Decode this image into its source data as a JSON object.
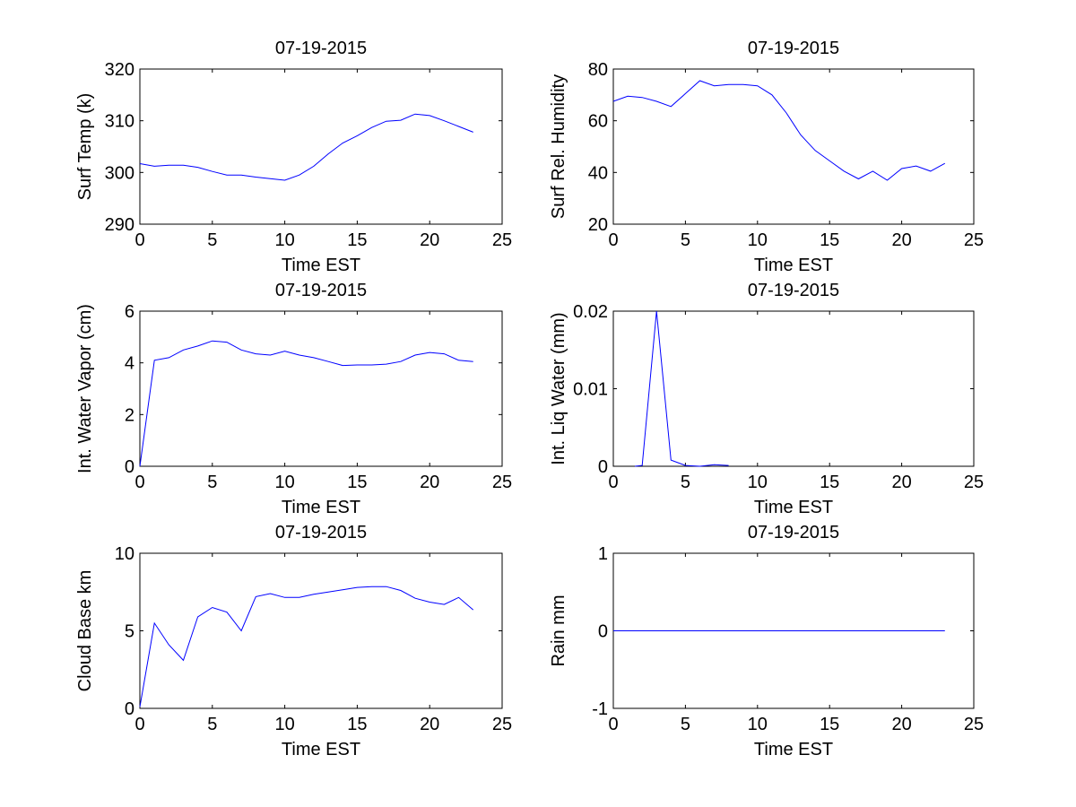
{
  "figure": {
    "background": "#ffffff",
    "line_color": "#0000ff"
  },
  "chart_data": [
    {
      "type": "line",
      "title": "07-19-2015",
      "xlabel": "Time EST",
      "ylabel": "Surf Temp (k)",
      "xlim": [
        0,
        25
      ],
      "ylim": [
        290,
        320
      ],
      "xticks": [
        0,
        5,
        10,
        15,
        20,
        25
      ],
      "yticks": [
        290,
        300,
        310,
        320
      ],
      "x": [
        0,
        1,
        2,
        3,
        4,
        5,
        6,
        7,
        8,
        9,
        10,
        11,
        12,
        13,
        14,
        15,
        16,
        17,
        18,
        19,
        20,
        21,
        22,
        23
      ],
      "series": [
        {
          "values": [
            301.7,
            301.2,
            301.4,
            301.4,
            301.0,
            300.2,
            299.5,
            299.5,
            299.1,
            298.8,
            298.5,
            299.5,
            301.2,
            303.6,
            305.7,
            307.1,
            308.7,
            309.9,
            310.1,
            311.3,
            311.0,
            310.0,
            308.9,
            307.8
          ]
        }
      ],
      "grid": false
    },
    {
      "type": "line",
      "title": "07-19-2015",
      "xlabel": "Time EST",
      "ylabel": "Surf Rel. Humidity",
      "xlim": [
        0,
        25
      ],
      "ylim": [
        20,
        80
      ],
      "xticks": [
        0,
        5,
        10,
        15,
        20,
        25
      ],
      "yticks": [
        20,
        40,
        60,
        80
      ],
      "x": [
        0,
        1,
        2,
        3,
        4,
        5,
        6,
        7,
        8,
        9,
        10,
        11,
        12,
        13,
        14,
        15,
        16,
        17,
        18,
        19,
        20,
        21,
        22,
        23
      ],
      "series": [
        {
          "values": [
            67.5,
            69.5,
            69.0,
            67.5,
            65.5,
            70.5,
            75.5,
            73.5,
            74.0,
            74.0,
            73.5,
            70.0,
            63.0,
            54.5,
            48.5,
            44.5,
            40.5,
            37.5,
            40.5,
            37.0,
            41.5,
            42.5,
            40.5,
            43.5
          ]
        }
      ],
      "grid": false
    },
    {
      "type": "line",
      "title": "07-19-2015",
      "xlabel": "Time EST",
      "ylabel": "Int. Water Vapor (cm)",
      "xlim": [
        0,
        25
      ],
      "ylim": [
        0,
        6
      ],
      "xticks": [
        0,
        5,
        10,
        15,
        20,
        25
      ],
      "yticks": [
        0,
        2,
        4,
        6
      ],
      "x": [
        0,
        1,
        2,
        3,
        4,
        5,
        6,
        7,
        8,
        9,
        10,
        11,
        12,
        13,
        14,
        15,
        16,
        17,
        18,
        19,
        20,
        21,
        22,
        23
      ],
      "series": [
        {
          "values": [
            0.0,
            4.1,
            4.2,
            4.5,
            4.65,
            4.85,
            4.8,
            4.5,
            4.35,
            4.3,
            4.45,
            4.3,
            4.2,
            4.05,
            3.9,
            3.92,
            3.92,
            3.95,
            4.05,
            4.3,
            4.4,
            4.35,
            4.1,
            4.05
          ]
        }
      ],
      "grid": false
    },
    {
      "type": "line",
      "title": "07-19-2015",
      "xlabel": "Time EST",
      "ylabel": "Int. Liq Water (mm)",
      "xlim": [
        0,
        25
      ],
      "ylim": [
        0,
        0.02
      ],
      "xticks": [
        0,
        5,
        10,
        15,
        20,
        25
      ],
      "yticks": [
        0,
        0.01,
        0.02
      ],
      "ytick_labels": [
        "0",
        "0.01",
        "0.02"
      ],
      "x": [
        1.5,
        2,
        3,
        4,
        5,
        6,
        7,
        8
      ],
      "series": [
        {
          "values": [
            0,
            0.0001,
            0.02,
            0.0008,
            0.0001,
            0,
            0.0002,
            0.0001
          ]
        }
      ],
      "grid": false
    },
    {
      "type": "line",
      "title": "07-19-2015",
      "xlabel": "Time EST",
      "ylabel": "Cloud Base km",
      "xlim": [
        0,
        25
      ],
      "ylim": [
        0,
        10
      ],
      "xticks": [
        0,
        5,
        10,
        15,
        20,
        25
      ],
      "yticks": [
        0,
        5,
        10
      ],
      "x": [
        0,
        1,
        2,
        3,
        4,
        5,
        6,
        7,
        8,
        9,
        10,
        11,
        12,
        13,
        14,
        15,
        16,
        17,
        18,
        19,
        20,
        21,
        22,
        23
      ],
      "series": [
        {
          "values": [
            0.1,
            5.5,
            4.1,
            3.1,
            5.9,
            6.5,
            6.2,
            5.0,
            7.2,
            7.4,
            7.15,
            7.15,
            7.35,
            7.5,
            7.65,
            7.8,
            7.85,
            7.85,
            7.6,
            7.1,
            6.85,
            6.7,
            7.15,
            6.35
          ]
        }
      ],
      "grid": false
    },
    {
      "type": "line",
      "title": "07-19-2015",
      "xlabel": "Time EST",
      "ylabel": "Rain mm",
      "xlim": [
        0,
        25
      ],
      "ylim": [
        -1,
        1
      ],
      "xticks": [
        0,
        5,
        10,
        15,
        20,
        25
      ],
      "yticks": [
        -1,
        0,
        1
      ],
      "x": [
        0,
        23
      ],
      "series": [
        {
          "values": [
            0,
            0
          ]
        }
      ],
      "grid": false
    }
  ]
}
